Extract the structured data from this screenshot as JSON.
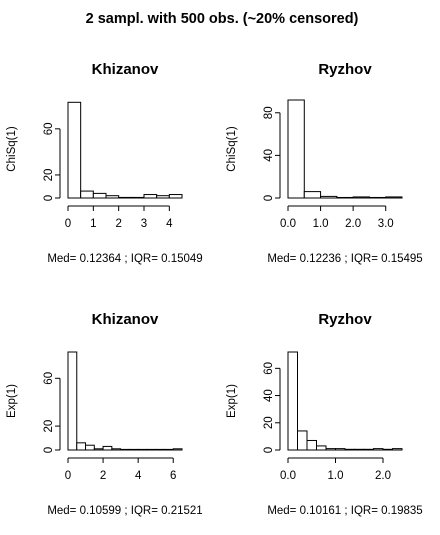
{
  "figure": {
    "title": "2 sampl. with 500 obs. (~20% censored)"
  },
  "chart_data": [
    {
      "type": "bar",
      "title": "Khizanov",
      "ylabel": "ChiSq(1)",
      "subtitle": "Med= 0.12364 ; IQR= 0.15049",
      "xlim": [
        0,
        4.5
      ],
      "ylim": [
        0,
        85
      ],
      "xticks": [
        0,
        1,
        2,
        3,
        4
      ],
      "xtick_labels": [
        "0",
        "1",
        "2",
        "3",
        "4"
      ],
      "yticks": [
        0,
        20,
        60
      ],
      "ytick_labels": [
        "0",
        "20",
        "60"
      ],
      "bins": [
        {
          "x0": 0.0,
          "x1": 0.5,
          "value": 83
        },
        {
          "x0": 0.5,
          "x1": 1.0,
          "value": 6
        },
        {
          "x0": 1.0,
          "x1": 1.5,
          "value": 4
        },
        {
          "x0": 1.5,
          "x1": 2.0,
          "value": 2
        },
        {
          "x0": 2.0,
          "x1": 2.5,
          "value": 0.5
        },
        {
          "x0": 2.5,
          "x1": 3.0,
          "value": 0.5
        },
        {
          "x0": 3.0,
          "x1": 3.5,
          "value": 3
        },
        {
          "x0": 3.5,
          "x1": 4.0,
          "value": 2
        },
        {
          "x0": 4.0,
          "x1": 4.5,
          "value": 3
        }
      ]
    },
    {
      "type": "bar",
      "title": "Ryzhov",
      "ylabel": "ChiSq(1)",
      "subtitle": "Med= 0.12236 ; IQR= 0.15495",
      "xlim": [
        0,
        3.5
      ],
      "ylim": [
        0,
        92
      ],
      "xticks": [
        0,
        1,
        2,
        3
      ],
      "xtick_labels": [
        "0.0",
        "1.0",
        "2.0",
        "3.0"
      ],
      "yticks": [
        0,
        40,
        80
      ],
      "ytick_labels": [
        "0",
        "40",
        "80"
      ],
      "bins": [
        {
          "x0": 0.0,
          "x1": 0.5,
          "value": 92
        },
        {
          "x0": 0.5,
          "x1": 1.0,
          "value": 6
        },
        {
          "x0": 1.0,
          "x1": 1.5,
          "value": 1.5
        },
        {
          "x0": 1.5,
          "x1": 2.0,
          "value": 0.5
        },
        {
          "x0": 2.0,
          "x1": 2.5,
          "value": 1
        },
        {
          "x0": 2.5,
          "x1": 3.0,
          "value": 0.5
        },
        {
          "x0": 3.0,
          "x1": 3.5,
          "value": 1
        }
      ]
    },
    {
      "type": "bar",
      "title": "Khizanov",
      "ylabel": "Exp(1)",
      "subtitle": "Med= 0.10599 ; IQR= 0.21521",
      "xlim": [
        0,
        6.5
      ],
      "ylim": [
        0,
        82
      ],
      "xticks": [
        0,
        2,
        4,
        6
      ],
      "xtick_labels": [
        "0",
        "2",
        "4",
        "6"
      ],
      "yticks": [
        0,
        20,
        60
      ],
      "ytick_labels": [
        "0",
        "20",
        "60"
      ],
      "bins": [
        {
          "x0": 0.0,
          "x1": 0.5,
          "value": 82
        },
        {
          "x0": 0.5,
          "x1": 1.0,
          "value": 6
        },
        {
          "x0": 1.0,
          "x1": 1.5,
          "value": 4
        },
        {
          "x0": 1.5,
          "x1": 2.0,
          "value": 1
        },
        {
          "x0": 2.0,
          "x1": 2.5,
          "value": 3
        },
        {
          "x0": 2.5,
          "x1": 3.0,
          "value": 1
        },
        {
          "x0": 3.0,
          "x1": 3.5,
          "value": 0.5
        },
        {
          "x0": 3.5,
          "x1": 4.0,
          "value": 0.5
        },
        {
          "x0": 4.0,
          "x1": 4.5,
          "value": 0.5
        },
        {
          "x0": 4.5,
          "x1": 5.0,
          "value": 0.5
        },
        {
          "x0": 5.0,
          "x1": 5.5,
          "value": 0.5
        },
        {
          "x0": 5.5,
          "x1": 6.0,
          "value": 0.5
        },
        {
          "x0": 6.0,
          "x1": 6.5,
          "value": 1
        }
      ]
    },
    {
      "type": "bar",
      "title": "Ryzhov",
      "ylabel": "Exp(1)",
      "subtitle": "Med= 0.10161 ; IQR= 0.19835",
      "xlim": [
        0,
        2.4
      ],
      "ylim": [
        0,
        72
      ],
      "xticks": [
        0,
        1,
        2
      ],
      "xtick_labels": [
        "0.0",
        "1.0",
        "2.0"
      ],
      "yticks": [
        0,
        20,
        40,
        60
      ],
      "ytick_labels": [
        "0",
        "20",
        "40",
        "60"
      ],
      "bins": [
        {
          "x0": 0.0,
          "x1": 0.2,
          "value": 72
        },
        {
          "x0": 0.2,
          "x1": 0.4,
          "value": 14
        },
        {
          "x0": 0.4,
          "x1": 0.6,
          "value": 7
        },
        {
          "x0": 0.6,
          "x1": 0.8,
          "value": 3
        },
        {
          "x0": 0.8,
          "x1": 1.0,
          "value": 1
        },
        {
          "x0": 1.0,
          "x1": 1.2,
          "value": 1
        },
        {
          "x0": 1.2,
          "x1": 1.4,
          "value": 0.5
        },
        {
          "x0": 1.4,
          "x1": 1.6,
          "value": 0.5
        },
        {
          "x0": 1.6,
          "x1": 1.8,
          "value": 0.5
        },
        {
          "x0": 1.8,
          "x1": 2.0,
          "value": 1
        },
        {
          "x0": 2.0,
          "x1": 2.2,
          "value": 0.5
        },
        {
          "x0": 2.2,
          "x1": 2.4,
          "value": 1
        }
      ]
    }
  ]
}
